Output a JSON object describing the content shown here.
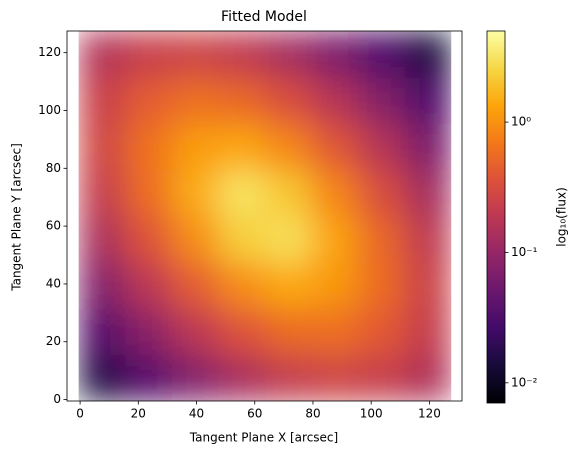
{
  "chart_data": {
    "type": "heatmap",
    "title": "Fitted Model",
    "x_label": "Tangent Plane X [arcsec]",
    "y_label": "Tangent Plane Y [arcsec]",
    "colormap": "inferno",
    "x": [
      7.5,
      23.5,
      39.5,
      55.5,
      71.5,
      87.5,
      103.5,
      119.5
    ],
    "y": [
      7.5,
      23.5,
      39.5,
      55.5,
      71.5,
      87.5,
      103.5,
      119.5
    ],
    "values": [
      [
        0.0163,
        0.036,
        0.075,
        0.139,
        0.216,
        0.26,
        0.229,
        0.155
      ],
      [
        0.036,
        0.085,
        0.186,
        0.361,
        0.556,
        0.586,
        0.414,
        0.223
      ],
      [
        0.076,
        0.188,
        0.443,
        0.93,
        1.4,
        1.11,
        0.56,
        0.245
      ],
      [
        0.143,
        0.37,
        0.95,
        2.31,
        2.96,
        1.31,
        0.515,
        0.2
      ],
      [
        0.224,
        0.58,
        1.47,
        3.15,
        2.08,
        0.84,
        0.329,
        0.127
      ],
      [
        0.273,
        0.62,
        1.18,
        1.37,
        0.86,
        0.4,
        0.168,
        0.068
      ],
      [
        0.243,
        0.44,
        0.6,
        0.536,
        0.336,
        0.17,
        0.077,
        0.033
      ],
      [
        0.164,
        0.237,
        0.258,
        0.207,
        0.13,
        0.069,
        0.033,
        0.0148
      ]
    ],
    "xlim": [
      -4.5,
      131.2
    ],
    "ylim": [
      -0.5,
      127.5
    ],
    "xticks": [
      0,
      20,
      40,
      60,
      80,
      100,
      120
    ],
    "yticks": [
      0,
      20,
      40,
      60,
      80,
      100,
      120
    ],
    "colorbar": {
      "label": "log₁₀(flux)",
      "scale": "log",
      "lim": [
        0.007,
        5
      ],
      "ticks": [
        {
          "value": 0.01,
          "label": "10⁻²"
        },
        {
          "value": 0.1,
          "label": "10⁻¹"
        },
        {
          "value": 1,
          "label": "10⁰"
        }
      ]
    }
  }
}
